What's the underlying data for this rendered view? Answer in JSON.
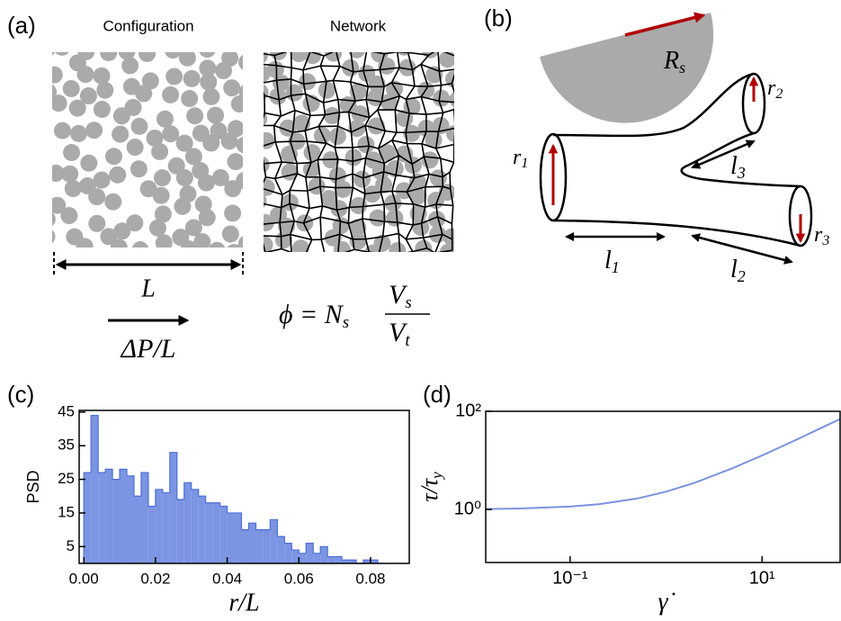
{
  "panel_a": {
    "label": "(a)",
    "configuration_title": "Configuration",
    "network_title": "Network",
    "length": "L",
    "pressure_gradient": "ΔP/L",
    "formula": {
      "lhs": "ϕ = N",
      "lhs_sub": "s",
      "numerator": "V",
      "numerator_sub": "s",
      "denominator": "V",
      "denominator_sub": "t"
    }
  },
  "panel_b": {
    "label": "(b)",
    "sphere_radius": {
      "symbol": "R",
      "sub": "s"
    },
    "radii": [
      {
        "symbol": "r",
        "sub": "1"
      },
      {
        "symbol": "r",
        "sub": "2"
      },
      {
        "symbol": "r",
        "sub": "3"
      }
    ],
    "lengths": [
      {
        "symbol": "l",
        "sub": "1"
      },
      {
        "symbol": "l",
        "sub": "2"
      },
      {
        "symbol": "l",
        "sub": "3"
      }
    ]
  },
  "chart_data": [
    {
      "type": "histogram",
      "panel_label": "(c)",
      "xlabel": "r/L",
      "ylabel": "PSD",
      "color": "#7c95e2",
      "edge_color": "#4d6fd8",
      "bins": [
        0,
        0.002,
        0.004,
        0.006,
        0.008,
        0.01,
        0.012,
        0.014,
        0.016,
        0.018,
        0.02,
        0.022,
        0.024,
        0.026,
        0.028,
        0.03,
        0.032,
        0.034,
        0.036,
        0.038,
        0.04,
        0.042,
        0.044,
        0.046,
        0.048,
        0.05,
        0.052,
        0.054,
        0.056,
        0.058,
        0.06,
        0.062,
        0.064,
        0.066,
        0.068,
        0.07,
        0.072,
        0.074,
        0.076,
        0.078,
        0.08,
        0.082,
        0.084
      ],
      "values": [
        27,
        44,
        27,
        28,
        25,
        28,
        26,
        20,
        27,
        17,
        22,
        21,
        33,
        19,
        24,
        22,
        20,
        18,
        18,
        17,
        15,
        15,
        10,
        12,
        10,
        10,
        13,
        8,
        6,
        4,
        3,
        6,
        3,
        5,
        2,
        2,
        1,
        1,
        0,
        1,
        1,
        0
      ],
      "xlim": [
        -0.0013,
        0.0908
      ],
      "ylim": [
        0,
        45.5
      ],
      "xticks": [
        {
          "value": 0,
          "label": "0.00"
        },
        0.02,
        0.04,
        0.06,
        0.08
      ],
      "yticks": [
        5,
        15,
        25,
        35,
        45
      ],
      "grid": false
    },
    {
      "type": "line",
      "panel_label": "(d)",
      "xlabel": "γ̇",
      "ylabel": "τ/τ",
      "ylabel_sub": "y",
      "color": "#7b93e0",
      "log_x": true,
      "log_y": true,
      "x": [
        0.0132,
        0.03,
        0.1,
        0.2,
        0.5,
        1,
        2,
        5,
        10,
        20,
        50,
        65
      ],
      "values": [
        1.021,
        1.046,
        1.146,
        1.28,
        1.67,
        2.3,
        3.51,
        7.0,
        12.6,
        23.4,
        54.6,
        69.5
      ],
      "xlim": [
        0.0132,
        65
      ],
      "ylim": [
        0.083,
        100
      ],
      "xticks": [
        {
          "value": 0.1,
          "label": "10⁻¹"
        },
        {
          "value": 10,
          "label": "10¹"
        }
      ],
      "yticks": [
        {
          "value": 1,
          "label": "10⁰"
        },
        {
          "value": 100,
          "label": "10²"
        }
      ],
      "grid": false
    }
  ]
}
